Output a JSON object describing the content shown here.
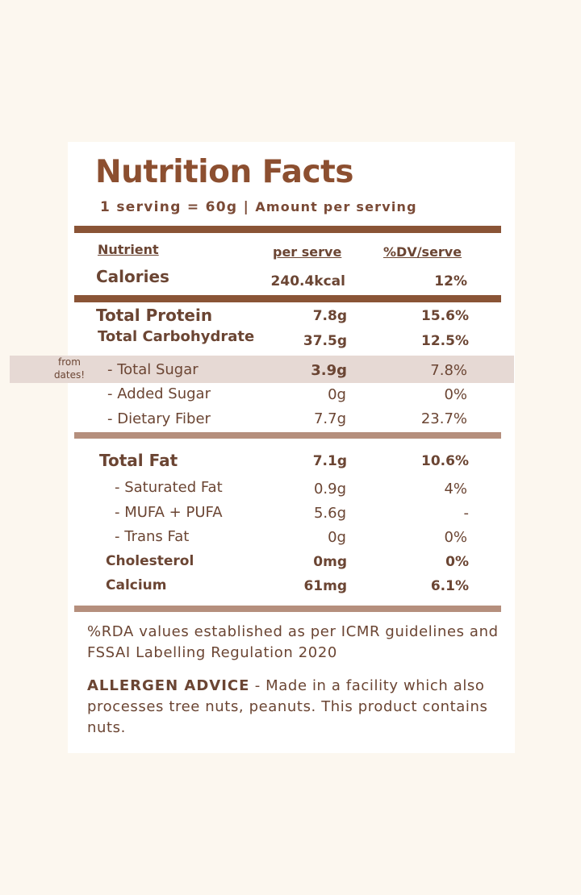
{
  "label": {
    "title": "Nutrition Facts",
    "serving_size": "1 serving = 60g |",
    "amount_per_serving": "Amount per serving",
    "columns": {
      "nutrient": "Nutrient",
      "per_serve": "per serve",
      "dv": "%DV/serve"
    },
    "highlight_note": [
      "from",
      "dates!"
    ],
    "rows": [
      {
        "name": "Calories",
        "per_serve": "240.4kcal",
        "dv": "12%"
      },
      {
        "name": "Total Protein",
        "per_serve": "7.8g",
        "dv": "15.6%"
      },
      {
        "name": "Total Carbohydrate",
        "per_serve": "37.5g",
        "dv": "12.5%"
      },
      {
        "name": "- Total Sugar",
        "per_serve": "3.9g",
        "dv": "7.8%"
      },
      {
        "name": "- Added Sugar",
        "per_serve": "0g",
        "dv": "0%"
      },
      {
        "name": "- Dietary Fiber",
        "per_serve": "7.7g",
        "dv": "23.7%"
      },
      {
        "name": "Total Fat",
        "per_serve": "7.1g",
        "dv": "10.6%"
      },
      {
        "name": "- Saturated Fat",
        "per_serve": "0.9g",
        "dv": "4%"
      },
      {
        "name": "- MUFA + PUFA",
        "per_serve": "5.6g",
        "dv": "-"
      },
      {
        "name": "- Trans Fat",
        "per_serve": "0g",
        "dv": "0%"
      },
      {
        "name": "Cholesterol",
        "per_serve": "0mg",
        "dv": "0%"
      },
      {
        "name": "Calcium",
        "per_serve": "61mg",
        "dv": "6.1%"
      }
    ],
    "rda_note": "%RDA values established as per ICMR guidelines and FSSAI Labelling Regulation 2020",
    "allergen_label": "ALLERGEN ADVICE",
    "allergen_text": " - Made in a facility which also processes tree nuts, peanuts. This product contains nuts."
  },
  "colors": {
    "page_background": "#fcf7ef",
    "card_background": "#ffffff",
    "title_brown": "#8c4f30",
    "text_brown": "#6b4533",
    "dark_rule": "#8a5436",
    "light_rule": "#b58f7d",
    "sugar_highlight": "#e6d9d4"
  }
}
